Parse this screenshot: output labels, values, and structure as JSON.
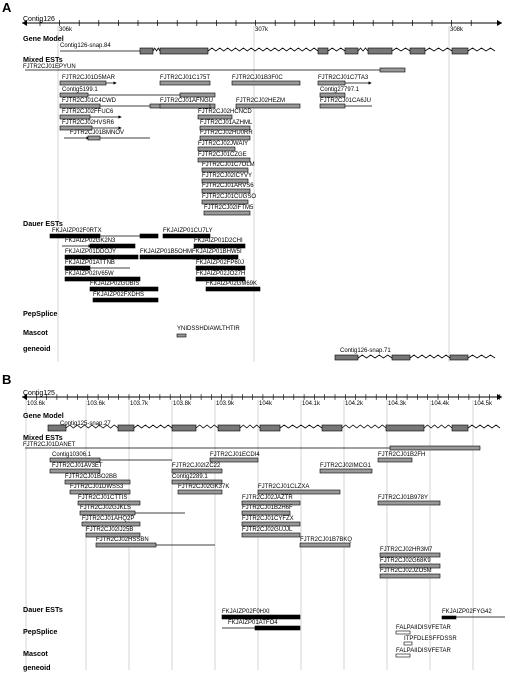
{
  "panels": [
    {
      "letter": "A",
      "contig": "Contig126",
      "axis": {
        "ticks": [
          {
            "label": "306k"
          },
          {
            "label": "307k"
          },
          {
            "label": "308k"
          }
        ]
      },
      "tracks": [
        {
          "title": "Gene Model",
          "features": [
            {
              "label": "Contig126-snap.84"
            }
          ]
        },
        {
          "title": "Mixed ESTs",
          "features": [
            {
              "label": "FJTR2CJ01EPYUN"
            },
            {
              "label": "FJTR2CJ01D5MAR"
            },
            {
              "label": "FJTR2CJ01C175T"
            },
            {
              "label": "FJTR2CJ01B3F0C"
            },
            {
              "label": "FJTR2CJ01C7TA3"
            },
            {
              "label": "Contig5199.1"
            },
            {
              "label": "Contig27797.1"
            },
            {
              "label": "FJTR2CJ01C4CWD"
            },
            {
              "label": "FJTR2CJ01AFNGU"
            },
            {
              "label": "FJTR2CJ02HEZM"
            },
            {
              "label": "FJTR2CJ01CA6JU"
            },
            {
              "label": "FJTR2CJ02FFUC6"
            },
            {
              "label": "FJTR2CJ02HCNCD"
            },
            {
              "label": "FJTR2CJ02HVSR6"
            },
            {
              "label": "FJTR2CJ01AZHML"
            },
            {
              "label": "FJTR2CJ01BMNOV"
            },
            {
              "label": "FJTR2CJ02HU0RR"
            },
            {
              "label": "FJTR2CJ02JWAIY"
            },
            {
              "label": "FJTR2CJ01CZGE"
            },
            {
              "label": "FJTR2CJ01C7OLM"
            },
            {
              "label": "FJTR2CJ02ICYVY"
            },
            {
              "label": "FJTR2CJ01ARVS6"
            },
            {
              "label": "FJTR2CJ01CUGSO"
            },
            {
              "label": "FJTR2CJ02IFTM5"
            }
          ]
        },
        {
          "title": "Dauer ESTs",
          "features": [
            {
              "label": "FKJAIZP02F0RTX"
            },
            {
              "label": "FKJAIZP01CU7LY"
            },
            {
              "label": "FKJAIZP02GK2N3"
            },
            {
              "label": "FKJAIZP01D2CHI"
            },
            {
              "label": "FKJAIZP01DDOJY"
            },
            {
              "label": "FKJAIZP01B5OHM"
            },
            {
              "label": "FKJAIZP01BHW5I"
            },
            {
              "label": "FKJAIZP01ATTNB"
            },
            {
              "label": "FKJAIZP02FP60J"
            },
            {
              "label": "FKJAIZP02IV65W"
            },
            {
              "label": "FKJAIZP02JO27H"
            },
            {
              "label": "FKJAIZP02GUBIS"
            },
            {
              "label": "FKJAIZP02GM69K"
            },
            {
              "label": "FKJAIZP02FXDHS"
            }
          ]
        },
        {
          "title": "PepSplice",
          "features": []
        },
        {
          "title": "Mascot",
          "features": [
            {
              "label": "YNIDSSHDIAWLTHTIR"
            }
          ]
        },
        {
          "title": "geneoid",
          "features": [
            {
              "label": "Contig126-snap.71"
            }
          ]
        }
      ]
    },
    {
      "letter": "B",
      "contig": "Contig125",
      "axis": {
        "ticks": [
          {
            "label": "103.6k"
          },
          {
            "label": "103.6k"
          },
          {
            "label": "103.7k"
          },
          {
            "label": "103.8k"
          },
          {
            "label": "103.9k"
          },
          {
            "label": "104k"
          },
          {
            "label": "104.1k"
          },
          {
            "label": "104.2k"
          },
          {
            "label": "104.3k"
          },
          {
            "label": "104.4k"
          },
          {
            "label": "104.5k"
          }
        ]
      },
      "tracks": [
        {
          "title": "Gene Model",
          "features": [
            {
              "label": "Contig125-snap.27"
            }
          ]
        },
        {
          "title": "Mixed ESTs",
          "features": [
            {
              "label": "FJTR2CJ01DANET"
            },
            {
              "label": "FJTR2CJ01ECDI4"
            },
            {
              "label": "FJTR2CJ01B2FH"
            },
            {
              "label": "Contig10306.1"
            },
            {
              "label": "FJTR2CJ01AV3ET"
            },
            {
              "label": "FJTR2CJ02IZC22"
            },
            {
              "label": "FJTR2CJ02IMCG1"
            },
            {
              "label": "FJTR2CJ01BO2BB"
            },
            {
              "label": "Contig2289.1"
            },
            {
              "label": "FJTR2CJ01DWSS3"
            },
            {
              "label": "FJTR2CJ02GK37K"
            },
            {
              "label": "FJTR2CJ01CLZXA"
            },
            {
              "label": "FJTR2CJ01B978Y"
            },
            {
              "label": "FJTR2CJ01CTTIS"
            },
            {
              "label": "FJTR2CJ02JAZTR"
            },
            {
              "label": "FJTR2CJ02GJKLS"
            },
            {
              "label": "FJTR2CJ01B2H6F"
            },
            {
              "label": "FJTR2CJ01AHQ2P"
            },
            {
              "label": "FJTR2CJ01CYFZX"
            },
            {
              "label": "FJTR2CJ02IJ25B"
            },
            {
              "label": "FJTR2CJ02GUJJL"
            },
            {
              "label": "FJTR2CJ01B7BKQ"
            },
            {
              "label": "FJTR2CJ02HSSBN"
            },
            {
              "label": "FJTR2CJ02HR3M7"
            },
            {
              "label": "FJTR2CJ02G68K9"
            },
            {
              "label": "FJTR2CJ02JZO5M"
            }
          ]
        },
        {
          "title": "Dauer ESTs",
          "features": [
            {
              "label": "FKJAIZP02F0HXI"
            },
            {
              "label": "FKJAIZP02FYG42"
            },
            {
              "label": "FKJAIZP01ATFO4"
            }
          ]
        },
        {
          "title": "PepSplice",
          "features": [
            {
              "label": "FALPAIIDISVFETAR"
            },
            {
              "label": "ITPFDLESFFDSSR"
            }
          ]
        },
        {
          "title": "Mascot",
          "features": [
            {
              "label": "FALPAIIDISVFETAR"
            }
          ]
        },
        {
          "title": "geneoid",
          "features": []
        }
      ]
    }
  ]
}
